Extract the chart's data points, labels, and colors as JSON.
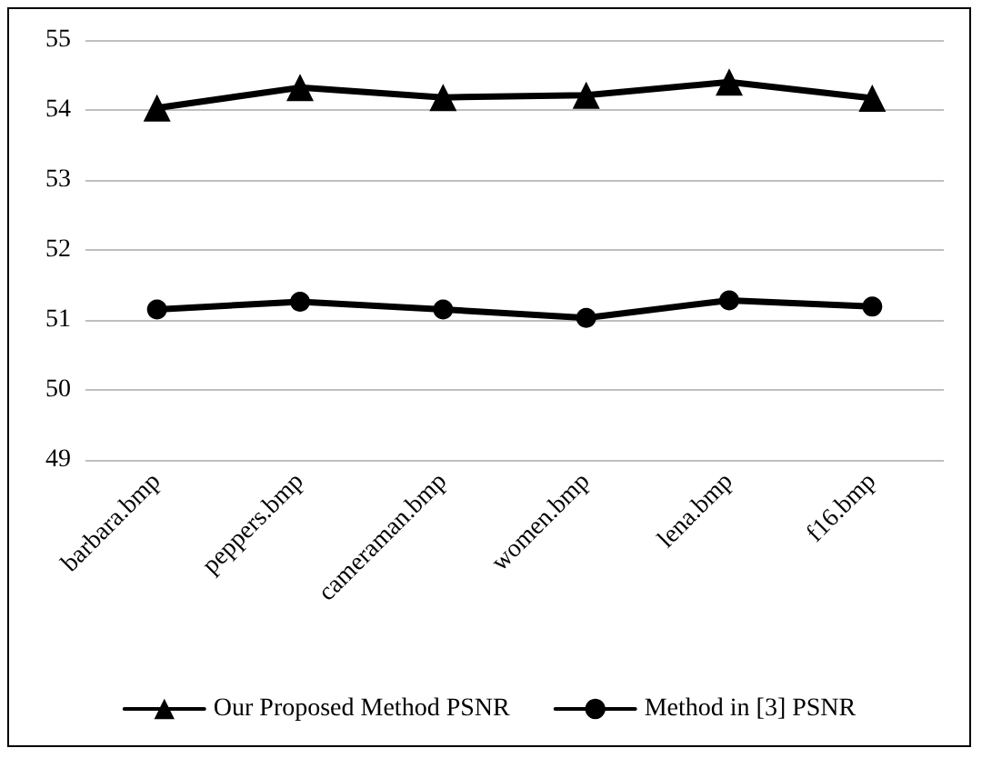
{
  "chart_data": {
    "type": "line",
    "categories": [
      "barbara.bmp",
      "peppers.bmp",
      "cameraman.bmp",
      "women.bmp",
      "lena.bmp",
      "f16.bmp"
    ],
    "series": [
      {
        "name": "Our Proposed Method PSNR",
        "color": "#000000",
        "marker": "triangle",
        "values": [
          54.03,
          54.32,
          54.18,
          54.21,
          54.4,
          54.17
        ]
      },
      {
        "name": "Method in [3] PSNR",
        "color": "#000000",
        "marker": "circle",
        "values": [
          51.15,
          51.26,
          51.15,
          51.03,
          51.28,
          51.19
        ]
      }
    ],
    "ylim": [
      49,
      55
    ],
    "yticks": [
      49,
      50,
      51,
      52,
      53,
      54,
      55
    ],
    "grid": "y",
    "legend": "bottom",
    "line_style": "solid"
  }
}
